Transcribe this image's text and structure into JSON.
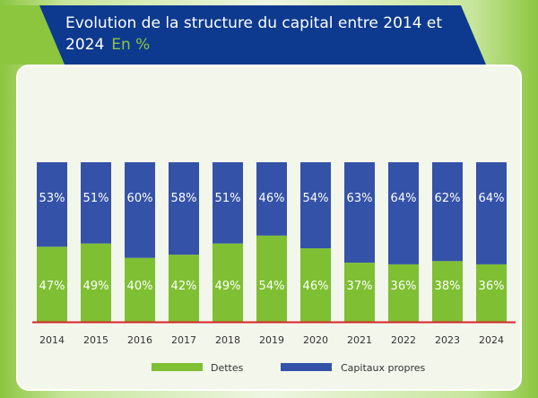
{
  "header": {
    "title": "Evolution de la structure du capital entre 2014 et 2024",
    "subtitle": "En %"
  },
  "colors": {
    "banner": "#0d3a8e",
    "accent_green": "#7fbf33",
    "accent_blue": "#3452a8",
    "baseline": "#d7262b"
  },
  "chart_data": {
    "type": "bar",
    "stacked": true,
    "categories": [
      "2014",
      "2015",
      "2016",
      "2017",
      "2018",
      "2019",
      "2020",
      "2021",
      "2022",
      "2023",
      "2024"
    ],
    "series": [
      {
        "name": "Dettes",
        "color": "#7fbf33",
        "values": [
          47,
          49,
          40,
          42,
          49,
          54,
          46,
          37,
          36,
          38,
          36
        ]
      },
      {
        "name": "Capitaux propres",
        "color": "#3452a8",
        "values": [
          53,
          51,
          60,
          58,
          51,
          46,
          54,
          63,
          64,
          62,
          64
        ]
      }
    ],
    "ylim": [
      0,
      100
    ],
    "value_suffix": "%",
    "legend_position": "bottom",
    "grid": false
  }
}
